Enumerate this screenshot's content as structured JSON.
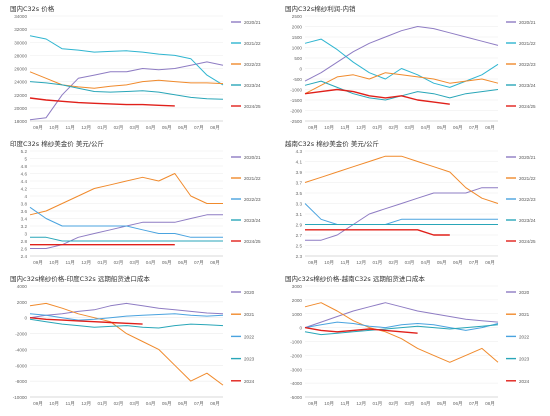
{
  "chart_data": [
    {
      "type": "line",
      "title": "国内C32s 价格",
      "x_ticks": [
        "09月",
        "10月",
        "11月",
        "12月",
        "01月",
        "02月",
        "03月",
        "04月",
        "05月",
        "06月",
        "07月",
        "08月"
      ],
      "y_ticks": [
        "18000",
        "20000",
        "22000",
        "24000",
        "26000",
        "28000",
        "30000",
        "32000",
        "34000"
      ],
      "ylim": [
        18000,
        34000
      ],
      "series": [
        {
          "name": "2020/21",
          "color": "#8e7cc3",
          "values": [
            18200,
            18500,
            22000,
            24500,
            25000,
            25500,
            25500,
            26000,
            25800,
            26000,
            26500,
            27000,
            26500
          ]
        },
        {
          "name": "2021/22",
          "color": "#2fb5d0",
          "values": [
            31000,
            30500,
            29000,
            28800,
            28500,
            28600,
            28700,
            28500,
            28200,
            28000,
            27500,
            25000,
            23500
          ]
        },
        {
          "name": "2022/23",
          "color": "#f08a2c",
          "values": [
            25500,
            24500,
            23500,
            23200,
            23000,
            23300,
            23500,
            24000,
            24200,
            24000,
            23800,
            23800,
            23700
          ]
        },
        {
          "name": "2023/24",
          "color": "#29a6b8",
          "values": [
            24000,
            23800,
            23500,
            23000,
            22500,
            22400,
            22500,
            22600,
            22400,
            22000,
            21600,
            21400,
            21300
          ]
        },
        {
          "name": "2024/25",
          "color": "#e0201a",
          "values": [
            21500,
            21200,
            21000,
            20800,
            20700,
            20600,
            20500,
            20500,
            20400,
            20300,
            null,
            null,
            null
          ]
        }
      ]
    },
    {
      "type": "line",
      "title": "国内C32s棉纱利润-内销",
      "x_ticks": [
        "09月",
        "10月",
        "11月",
        "12月",
        "01月",
        "02月",
        "03月",
        "04月",
        "05月",
        "06月",
        "07月",
        "08月"
      ],
      "y_ticks": [
        "-2500",
        "-2000",
        "-1500",
        "-1000",
        "-500",
        "0",
        "500",
        "1000",
        "1500",
        "2000",
        "2500"
      ],
      "ylim": [
        -2500,
        2500
      ],
      "series": [
        {
          "name": "2020/21",
          "color": "#8e7cc3",
          "values": [
            -600,
            -200,
            300,
            800,
            1200,
            1500,
            1800,
            2000,
            1900,
            1700,
            1500,
            1300,
            1100
          ]
        },
        {
          "name": "2021/22",
          "color": "#2fb5d0",
          "values": [
            1200,
            1400,
            900,
            300,
            -200,
            -500,
            0,
            -300,
            -700,
            -900,
            -600,
            -300,
            200
          ]
        },
        {
          "name": "2022/23",
          "color": "#f08a2c",
          "values": [
            -1200,
            -800,
            -400,
            -300,
            -500,
            -200,
            -300,
            -400,
            -500,
            -700,
            -600,
            -500,
            -700
          ]
        },
        {
          "name": "2023/24",
          "color": "#29a6b8",
          "values": [
            -800,
            -600,
            -900,
            -1200,
            -1400,
            -1500,
            -1300,
            -1100,
            -1200,
            -1400,
            -1200,
            -1100,
            -1000
          ]
        },
        {
          "name": "2024/25",
          "color": "#e0201a",
          "values": [
            -1200,
            -1100,
            -1000,
            -1100,
            -1300,
            -1400,
            -1300,
            -1500,
            -1600,
            -1700,
            null,
            null,
            null
          ]
        }
      ]
    },
    {
      "type": "line",
      "title": "印度C32s 棉纱美金价 美元/公斤",
      "x_ticks": [
        "09月",
        "10月",
        "11月",
        "12月",
        "01月",
        "02月",
        "03月",
        "04月",
        "05月",
        "06月",
        "07月",
        "08月"
      ],
      "y_ticks": [
        "2.4",
        "2.6",
        "2.8",
        "3",
        "3.2",
        "3.4",
        "3.6",
        "3.8",
        "4",
        "4.2",
        "4.4",
        "4.6",
        "4.8",
        "5",
        "5.2"
      ],
      "ylim": [
        2.4,
        5.2
      ],
      "series": [
        {
          "name": "2020/21",
          "color": "#8e7cc3",
          "values": [
            2.6,
            2.6,
            2.7,
            2.9,
            3.0,
            3.1,
            3.2,
            3.3,
            3.3,
            3.3,
            3.4,
            3.5,
            3.5
          ]
        },
        {
          "name": "2021/22",
          "color": "#f08a2c",
          "values": [
            3.5,
            3.6,
            3.8,
            4.0,
            4.2,
            4.3,
            4.4,
            4.5,
            4.4,
            4.6,
            4.0,
            3.8,
            3.8
          ]
        },
        {
          "name": "2022/23",
          "color": "#4aa3df",
          "values": [
            3.7,
            3.4,
            3.2,
            3.2,
            3.2,
            3.2,
            3.2,
            3.1,
            3.0,
            3.0,
            2.9,
            2.9,
            2.9
          ]
        },
        {
          "name": "2023/24",
          "color": "#29a6b8",
          "values": [
            2.9,
            2.9,
            2.8,
            2.8,
            2.8,
            2.8,
            2.8,
            2.8,
            2.8,
            2.8,
            2.8,
            2.8,
            2.8
          ]
        },
        {
          "name": "2024/25",
          "color": "#e0201a",
          "values": [
            2.7,
            2.7,
            2.7,
            2.7,
            2.7,
            2.7,
            2.7,
            2.7,
            2.7,
            2.7,
            null,
            null,
            null
          ]
        }
      ]
    },
    {
      "type": "line",
      "title": "越南C32s 棉纱美金价 美元/公斤",
      "x_ticks": [
        "09月",
        "10月",
        "11月",
        "12月",
        "01月",
        "02月",
        "03月",
        "04月",
        "05月",
        "06月",
        "07月",
        "08月"
      ],
      "y_ticks": [
        "2.3",
        "2.5",
        "2.7",
        "2.9",
        "3.1",
        "3.3",
        "3.5",
        "3.7",
        "3.9",
        "4.1",
        "4.3"
      ],
      "ylim": [
        2.3,
        4.3
      ],
      "series": [
        {
          "name": "2020/21",
          "color": "#8e7cc3",
          "values": [
            2.6,
            2.6,
            2.7,
            2.9,
            3.1,
            3.2,
            3.3,
            3.4,
            3.5,
            3.5,
            3.5,
            3.6,
            3.6
          ]
        },
        {
          "name": "2021/22",
          "color": "#f08a2c",
          "values": [
            3.7,
            3.8,
            3.9,
            4.0,
            4.1,
            4.2,
            4.2,
            4.1,
            4.0,
            3.9,
            3.6,
            3.4,
            3.3
          ]
        },
        {
          "name": "2022/23",
          "color": "#4aa3df",
          "values": [
            3.3,
            3.0,
            2.9,
            2.9,
            2.9,
            2.9,
            3.0,
            3.0,
            3.0,
            3.0,
            3.0,
            3.0,
            3.0
          ]
        },
        {
          "name": "2023/24",
          "color": "#29a6b8",
          "values": [
            2.9,
            2.9,
            2.9,
            2.9,
            2.9,
            2.9,
            2.9,
            2.9,
            2.9,
            2.9,
            2.9,
            2.9,
            2.9
          ]
        },
        {
          "name": "2024/25",
          "color": "#e0201a",
          "values": [
            2.8,
            2.8,
            2.8,
            2.8,
            2.8,
            2.8,
            2.8,
            2.8,
            2.7,
            2.7,
            null,
            null,
            null
          ]
        }
      ]
    },
    {
      "type": "line",
      "title": "国内c32s棉纱价格-印度C32s 远期船货进口成本",
      "x_ticks": [
        "09月",
        "10月",
        "11月",
        "12月",
        "01月",
        "02月",
        "03月",
        "04月",
        "05月",
        "06月",
        "07月",
        "08月"
      ],
      "y_ticks": [
        "-10000",
        "-8000",
        "-6000",
        "-4000",
        "-2000",
        "0",
        "2000",
        "4000"
      ],
      "ylim": [
        -10000,
        4000
      ],
      "series": [
        {
          "name": "2020",
          "color": "#8e7cc3",
          "values": [
            0,
            300,
            500,
            800,
            1000,
            1500,
            1800,
            1500,
            1200,
            1000,
            800,
            600,
            500
          ]
        },
        {
          "name": "2021",
          "color": "#f08a2c",
          "values": [
            1500,
            1800,
            1200,
            500,
            0,
            -500,
            -2000,
            -3000,
            -4000,
            -6000,
            -8000,
            -7000,
            -8500
          ]
        },
        {
          "name": "2022",
          "color": "#4aa3df",
          "values": [
            500,
            300,
            0,
            -300,
            -200,
            0,
            200,
            300,
            400,
            500,
            300,
            200,
            300
          ]
        },
        {
          "name": "2023",
          "color": "#29a6b8",
          "values": [
            -200,
            -500,
            -800,
            -1000,
            -1200,
            -1100,
            -1000,
            -1200,
            -1300,
            -1000,
            -800,
            -900,
            -1000
          ]
        },
        {
          "name": "2024",
          "color": "#e0201a",
          "values": [
            0,
            -200,
            -300,
            -400,
            -500,
            -600,
            -700,
            -800,
            null,
            null,
            null,
            null,
            null
          ]
        }
      ]
    },
    {
      "type": "line",
      "title": "国内c32s棉纱价格-越南C32s 远期船货进口成本",
      "x_ticks": [
        "09月",
        "10月",
        "11月",
        "12月",
        "01月",
        "02月",
        "03月",
        "04月",
        "05月",
        "06月",
        "07月",
        "08月"
      ],
      "y_ticks": [
        "-5000",
        "-4000",
        "-3000",
        "-2000",
        "-1000",
        "0",
        "1000",
        "2000",
        "3000"
      ],
      "ylim": [
        -5000,
        3000
      ],
      "series": [
        {
          "name": "2020",
          "color": "#8e7cc3",
          "values": [
            0,
            400,
            800,
            1200,
            1500,
            1800,
            1500,
            1200,
            1000,
            800,
            600,
            500,
            400
          ]
        },
        {
          "name": "2021",
          "color": "#f08a2c",
          "values": [
            1500,
            1800,
            1200,
            500,
            0,
            -300,
            -800,
            -1500,
            -2000,
            -2500,
            -2000,
            -1500,
            -2500
          ]
        },
        {
          "name": "2022",
          "color": "#4aa3df",
          "values": [
            0,
            200,
            400,
            300,
            100,
            0,
            200,
            300,
            200,
            0,
            -200,
            0,
            300
          ]
        },
        {
          "name": "2023",
          "color": "#29a6b8",
          "values": [
            -300,
            -500,
            -400,
            -300,
            -200,
            -100,
            0,
            100,
            0,
            -100,
            0,
            100,
            200
          ]
        },
        {
          "name": "2024",
          "color": "#e0201a",
          "values": [
            0,
            -200,
            -300,
            -200,
            -100,
            -200,
            -300,
            -400,
            null,
            null,
            null,
            null,
            null
          ]
        }
      ]
    }
  ]
}
